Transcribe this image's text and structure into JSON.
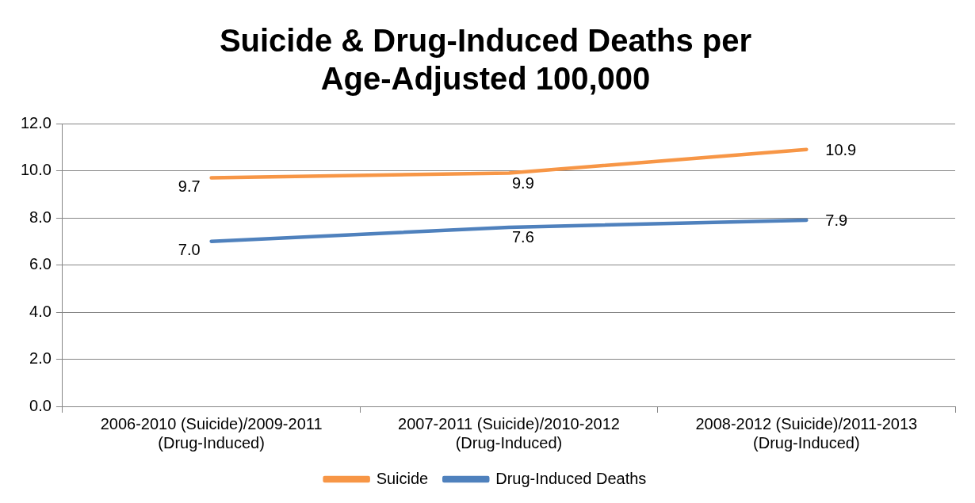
{
  "chart_data": {
    "type": "line",
    "title": "Suicide & Drug-Induced Deaths per Age-Adjusted 100,000",
    "categories": [
      "2006-2010 (Suicide)/2009-2011 (Drug-Induced)",
      "2007-2011 (Suicide)/2010-2012 (Drug-Induced)",
      "2008-2012 (Suicide)/2011-2013 (Drug-Induced)"
    ],
    "series": [
      {
        "name": "Suicide",
        "color": "#f79646",
        "values": [
          9.7,
          9.9,
          10.9
        ],
        "value_labels": [
          "9.7",
          "9.9",
          "10.9"
        ]
      },
      {
        "name": "Drug-Induced Deaths",
        "color": "#4f81bd",
        "values": [
          7.0,
          7.6,
          7.9
        ],
        "value_labels": [
          "7.0",
          "7.6",
          "7.9"
        ]
      }
    ],
    "ylim": [
      0,
      12
    ],
    "yticks": [
      {
        "value": 0,
        "label": "0.0"
      },
      {
        "value": 2,
        "label": "2.0"
      },
      {
        "value": 4,
        "label": "4.0"
      },
      {
        "value": 6,
        "label": "6.0"
      },
      {
        "value": 8,
        "label": "8.0"
      },
      {
        "value": 10,
        "label": "10.0"
      },
      {
        "value": 12,
        "label": "12.0"
      }
    ],
    "grid": "y",
    "legend": "bottom",
    "marker": "none",
    "line_style": "solid"
  }
}
